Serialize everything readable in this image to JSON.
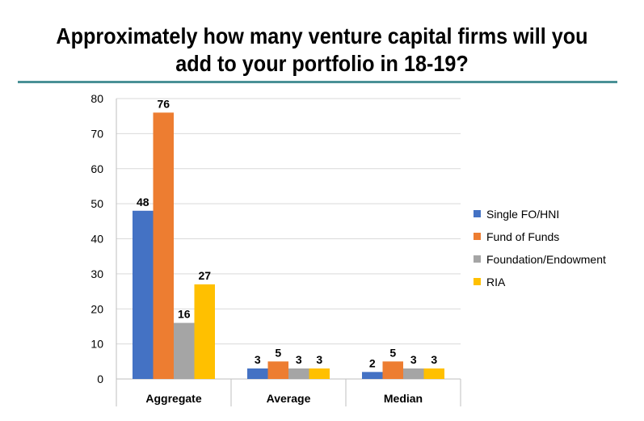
{
  "chart_data": {
    "type": "bar",
    "title": "Approximately how many venture capital firms will you add to your portfolio in 18-19?",
    "title_line1": "Approximately how many venture capital firms will you",
    "title_line2": "add to your portfolio in 18-19?",
    "categories": [
      "Aggregate",
      "Average",
      "Median"
    ],
    "series": [
      {
        "name": "Single FO/HNI",
        "color": "#4472C4",
        "values": [
          48,
          3,
          2
        ]
      },
      {
        "name": "Fund of Funds",
        "color": "#ED7D31",
        "values": [
          76,
          5,
          5
        ]
      },
      {
        "name": "Foundation/Endowment",
        "color": "#A5A5A5",
        "values": [
          16,
          3,
          3
        ]
      },
      {
        "name": "RIA",
        "color": "#FFC000",
        "values": [
          27,
          3,
          3
        ]
      }
    ],
    "ylim": [
      0,
      80
    ],
    "yticks": [
      0,
      10,
      20,
      30,
      40,
      50,
      60,
      70,
      80
    ],
    "grid": true,
    "legend_position": "right",
    "data_labels": true
  },
  "colors": {
    "title_rule": "#4a9196",
    "grid": "#d9d9d9"
  }
}
